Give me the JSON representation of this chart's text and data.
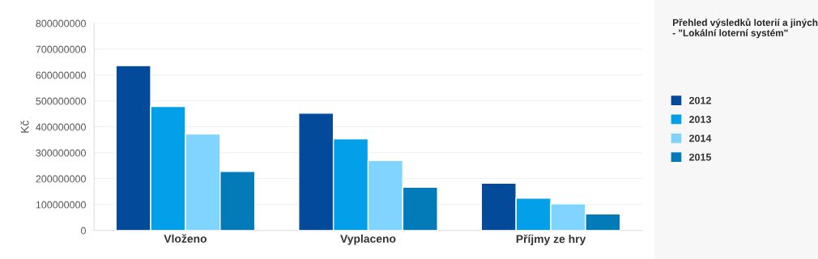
{
  "chart_data": {
    "type": "bar",
    "title": "Přehled výsledků loterií a jiných\n- \"Lokální loterní systém\"",
    "ylabel": "Kč",
    "categories": [
      "Vloženo",
      "Vyplaceno",
      "Příjmy ze hry"
    ],
    "series": [
      {
        "name": "2012",
        "color": "#034a9b",
        "values": [
          637000000,
          453000000,
          183000000
        ]
      },
      {
        "name": "2013",
        "color": "#039fe8",
        "values": [
          479000000,
          354000000,
          125000000
        ]
      },
      {
        "name": "2014",
        "color": "#7fd5ff",
        "values": [
          373000000,
          270000000,
          103000000
        ]
      },
      {
        "name": "2015",
        "color": "#037bb8",
        "values": [
          228000000,
          167000000,
          64000000
        ]
      }
    ],
    "ylim": [
      0,
      800000000
    ],
    "yticks": [
      0,
      100000000,
      200000000,
      300000000,
      400000000,
      500000000,
      600000000,
      700000000,
      800000000
    ],
    "grid": "y",
    "legend": "right"
  }
}
